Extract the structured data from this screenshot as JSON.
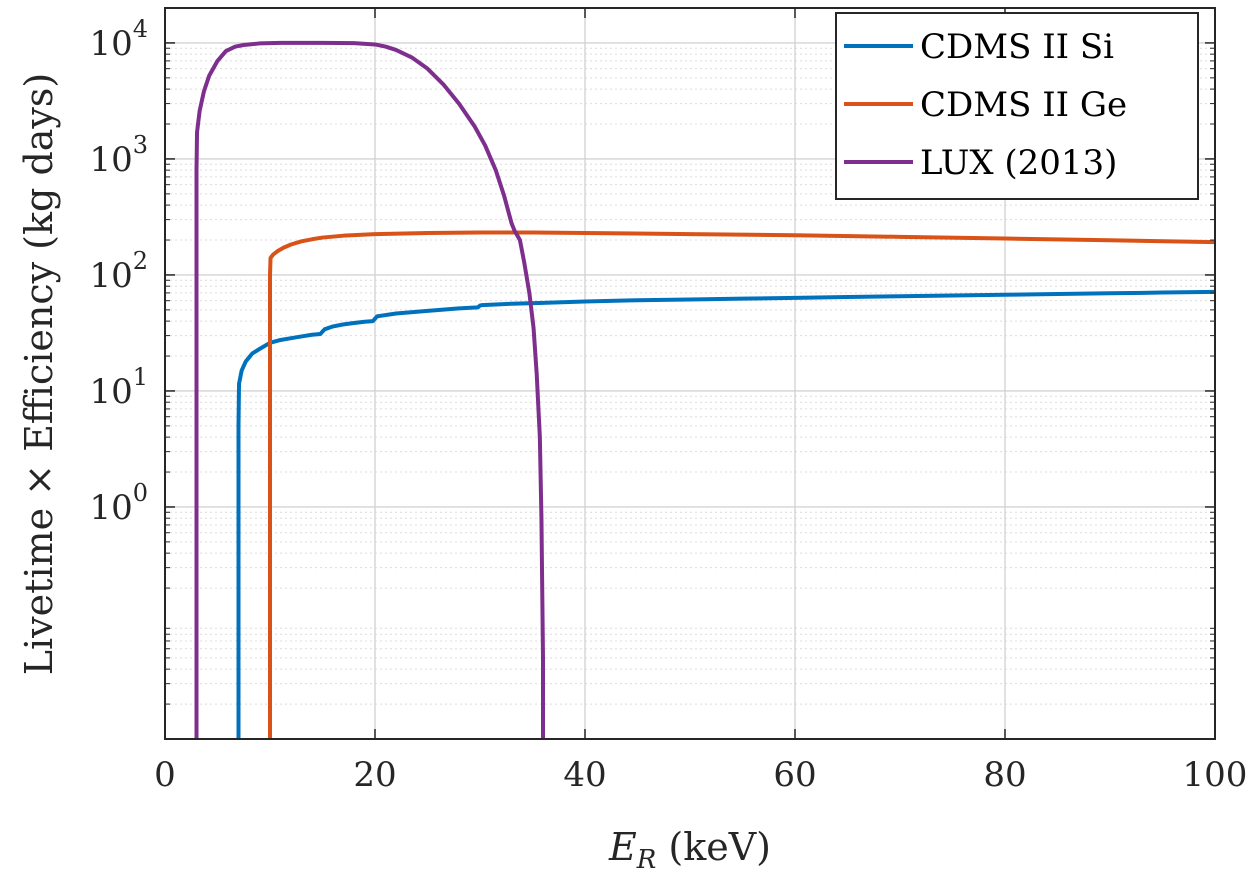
{
  "chart_data": {
    "type": "line",
    "xlabel": {
      "main": "E",
      "sub": "R",
      "rest": " (keV)"
    },
    "ylabel": "Livetime × Efficiency (kg days)",
    "xlim": [
      0,
      100
    ],
    "ylim": [
      0.01,
      20000
    ],
    "yscale": "log",
    "grid": true,
    "legend_position": "top-right",
    "xticks": [
      0,
      20,
      40,
      60,
      80,
      100
    ],
    "xtick_labels": [
      "0",
      "20",
      "40",
      "60",
      "80",
      "100"
    ],
    "yticks": [
      1,
      10,
      100,
      1000,
      10000
    ],
    "ytick_labels": [
      {
        "base": "10",
        "exp": "0"
      },
      {
        "base": "10",
        "exp": "1"
      },
      {
        "base": "10",
        "exp": "2"
      },
      {
        "base": "10",
        "exp": "3"
      },
      {
        "base": "10",
        "exp": "4"
      }
    ],
    "series": [
      {
        "name": "CDMS II Si",
        "color": "#0072BD",
        "x": [
          7,
          7,
          7.05,
          7.3,
          7.7,
          8.3,
          9,
          10,
          11,
          12,
          13,
          14,
          14.8,
          15,
          15.2,
          16,
          17,
          18,
          19,
          19.8,
          20,
          20.2,
          22,
          25,
          28,
          29.8,
          30,
          30.2,
          33,
          36,
          40,
          45,
          50,
          55,
          60,
          65,
          70,
          75,
          80,
          85,
          90,
          95,
          100
        ],
        "y": [
          0.01,
          5,
          11.5,
          15,
          18,
          21,
          23,
          26,
          27.5,
          28.5,
          29.5,
          30.5,
          31,
          32.5,
          34,
          36,
          37.5,
          38.5,
          39.5,
          40,
          42,
          44,
          46.5,
          49,
          51.5,
          52.5,
          54.5,
          55,
          56.5,
          57.5,
          59,
          60.5,
          61.5,
          62.5,
          63.5,
          64.5,
          65.5,
          66.5,
          67.5,
          68.5,
          69.5,
          70.5,
          71.5
        ]
      },
      {
        "name": "CDMS II Ge",
        "color": "#D95319",
        "x": [
          10,
          10,
          10.05,
          10.3,
          10.7,
          11.3,
          12,
          13,
          14,
          15,
          17,
          20,
          25,
          30,
          35,
          40,
          50,
          60,
          70,
          80,
          90,
          100
        ],
        "y": [
          0.01,
          100,
          140,
          150,
          160,
          172,
          183,
          195,
          203,
          210,
          218,
          225,
          230,
          232,
          232,
          230,
          225,
          220,
          213,
          206,
          199,
          192
        ]
      },
      {
        "name": "LUX (2013)",
        "color": "#7E2F8E",
        "x": [
          3,
          3,
          3.05,
          3.3,
          3.7,
          4.2,
          5,
          5.8,
          6.7,
          7.5,
          9,
          11,
          15,
          18,
          20,
          21,
          22,
          23.5,
          25,
          26.5,
          28,
          29.5,
          30.5,
          31.5,
          32.3,
          33,
          33.3,
          33.8,
          34.2,
          34.7,
          35.1,
          35.4,
          35.7,
          35.85,
          36,
          36
        ],
        "y": [
          0.01,
          800,
          1700,
          2600,
          3800,
          5200,
          7000,
          8500,
          9300,
          9600,
          9900,
          10000,
          10000,
          9950,
          9700,
          9300,
          8700,
          7500,
          6000,
          4400,
          3000,
          1900,
          1300,
          800,
          480,
          280,
          240,
          200,
          130,
          70,
          35,
          14,
          4,
          0.8,
          0.05,
          0.01
        ]
      }
    ]
  }
}
